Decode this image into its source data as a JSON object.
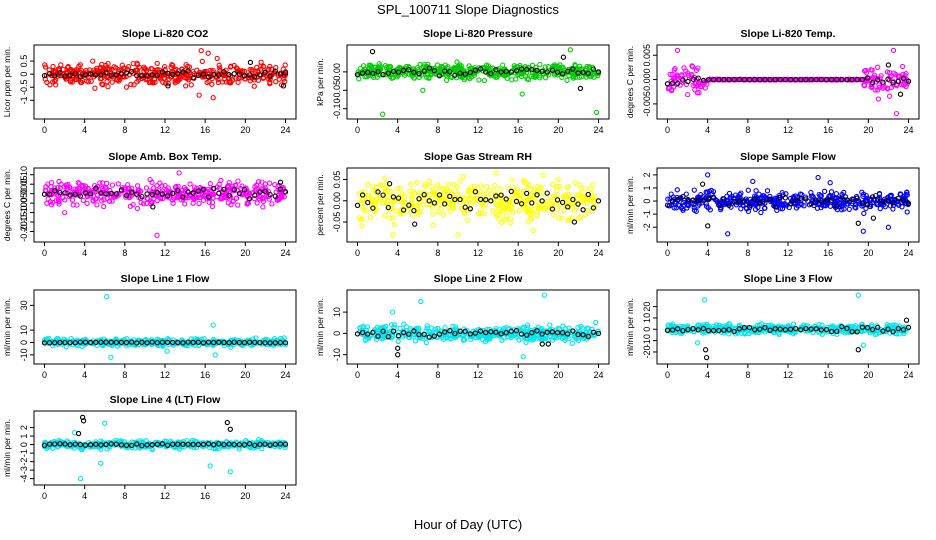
{
  "title": "SPL_100711  Slope Diagnostics",
  "xlabel": "Hour of Day (UTC)",
  "chart_data": [
    {
      "type": "scatter",
      "title": "Slope Li-820 CO2",
      "ylabel": "Licor ppm per min.",
      "color": "#ff0000",
      "xlim": [
        0,
        24
      ],
      "xticks": [
        0,
        4,
        8,
        12,
        16,
        20,
        24
      ],
      "ylim": [
        -1.6,
        1.0
      ],
      "yticks": [
        -1,
        -0.5,
        0,
        0.5
      ],
      "ytick_labels": [
        "-1",
        "-0.5",
        "0",
        "0.5"
      ],
      "amp": 0.35,
      "spikes": [
        [
          15.6,
          0.9
        ],
        [
          16.3,
          0.8
        ],
        [
          15.4,
          -0.8
        ],
        [
          16.8,
          -0.9
        ],
        [
          17.2,
          0.6
        ],
        [
          4.8,
          0.5
        ]
      ],
      "black_amp": 0.15,
      "black_spikes": [
        [
          12.3,
          -0.45
        ],
        [
          23.8,
          -0.45
        ],
        [
          20.5,
          0.45
        ]
      ]
    },
    {
      "type": "scatter",
      "title": "Slope Li-820 Pressure",
      "ylabel": "kPa per min.",
      "color": "#00cc00",
      "xlim": [
        0,
        24
      ],
      "xticks": [
        0,
        4,
        8,
        12,
        16,
        20,
        24
      ],
      "ylim": [
        -0.12,
        0.065
      ],
      "yticks": [
        -0.1,
        -0.05,
        0
      ],
      "ytick_labels": [
        "-0.10",
        "-0.05",
        "0.00"
      ],
      "amp": 0.018,
      "spikes": [
        [
          2.5,
          -0.115
        ],
        [
          23.8,
          -0.11
        ],
        [
          16.4,
          -0.06
        ],
        [
          21.2,
          0.06
        ],
        [
          6.5,
          -0.05
        ]
      ],
      "black_amp": 0.012,
      "black_spikes": [
        [
          1.5,
          0.055
        ],
        [
          22.2,
          -0.045
        ],
        [
          20.5,
          0.04
        ]
      ]
    },
    {
      "type": "scatter",
      "title": "Slope Li-820 Temp.",
      "ylabel": "degrees C per min.",
      "color": "#ff00ff",
      "xlim": [
        0,
        24
      ],
      "xticks": [
        0,
        4,
        8,
        12,
        16,
        20,
        24
      ],
      "ylim": [
        -0.0075,
        0.0065
      ],
      "yticks": [
        -0.005,
        0,
        0.005
      ],
      "ytick_labels": [
        "-0.005",
        "0.000",
        "0.005"
      ],
      "amp": 0.0025,
      "flat": [
        4,
        19.5
      ],
      "spikes": [
        [
          1.0,
          0.006
        ],
        [
          22.5,
          0.006
        ],
        [
          22.8,
          -0.007
        ],
        [
          21.0,
          -0.004
        ]
      ],
      "black_amp": 0.001,
      "black_spikes": [
        [
          23.2,
          -0.003
        ],
        [
          22.0,
          0.003
        ]
      ]
    },
    {
      "type": "scatter",
      "title": "Slope Amb. Box Temp.",
      "ylabel": "degrees C per min.",
      "color": "#ff00ff",
      "xlim": [
        0,
        24
      ],
      "xticks": [
        0,
        4,
        8,
        12,
        16,
        20,
        24
      ],
      "ylim": [
        -0.24,
        0.12
      ],
      "yticks": [
        -0.2,
        -0.15,
        -0.1,
        -0.05,
        0,
        0.05,
        0.1
      ],
      "ytick_labels": [
        "-0.20",
        "-0.15",
        "-0.10",
        "-0.05",
        "0.00",
        "0.05",
        "0.10"
      ],
      "amp": 0.05,
      "spikes": [
        [
          11.2,
          -0.22
        ],
        [
          13.4,
          0.11
        ],
        [
          2.0,
          -0.1
        ]
      ],
      "black_amp": 0.03,
      "black_spikes": [
        [
          10.8,
          -0.07
        ],
        [
          23.5,
          0.06
        ]
      ]
    },
    {
      "type": "scatter",
      "title": "Slope Gas Stream RH",
      "ylabel": "percent per min.",
      "color": "#ffff00",
      "xlim": [
        0,
        24
      ],
      "xticks": [
        0,
        4,
        8,
        12,
        16,
        20,
        24
      ],
      "ylim": [
        -0.09,
        0.07
      ],
      "yticks": [
        -0.05,
        0,
        0.05
      ],
      "ytick_labels": [
        "-0.05",
        "0.00",
        "0.05"
      ],
      "amp": 0.04,
      "spikes": [
        [
          3.5,
          -0.08
        ],
        [
          10.0,
          -0.08
        ],
        [
          17.5,
          -0.07
        ],
        [
          18.5,
          0.06
        ]
      ],
      "black_amp": 0.03,
      "black_spikes": [
        [
          5.7,
          -0.055
        ],
        [
          21.6,
          -0.05
        ],
        [
          3.2,
          0.04
        ]
      ]
    },
    {
      "type": "scatter",
      "title": "Slope Sample Flow",
      "ylabel": "ml/min per min.",
      "color": "#0000ff",
      "xlim": [
        0,
        24
      ],
      "xticks": [
        0,
        4,
        8,
        12,
        16,
        20,
        24
      ],
      "ylim": [
        -2.9,
        2.3
      ],
      "yticks": [
        -2,
        -1,
        0,
        1,
        2
      ],
      "ytick_labels": [
        "-2",
        "-1",
        "0",
        "1",
        "2"
      ],
      "amp": 0.6,
      "spikes": [
        [
          4.0,
          2.0
        ],
        [
          6.0,
          -2.5
        ],
        [
          16.2,
          1.4
        ],
        [
          19.5,
          -2.3
        ],
        [
          22.0,
          -2.0
        ],
        [
          15.0,
          1.8
        ],
        [
          8.5,
          1.5
        ]
      ],
      "black_amp": 0.5,
      "black_spikes": [
        [
          4.0,
          -1.9
        ],
        [
          19.0,
          -1.7
        ],
        [
          20.5,
          -1.3
        ],
        [
          3.5,
          1.3
        ]
      ]
    },
    {
      "type": "scatter",
      "title": "Slope Line 1 Flow",
      "ylabel": "ml/min per min.",
      "color": "#00e5ee",
      "xlim": [
        0,
        24
      ],
      "xticks": [
        0,
        4,
        8,
        12,
        16,
        20,
        24
      ],
      "ylim": [
        -15,
        40
      ],
      "yticks": [
        -10,
        0,
        10,
        30
      ],
      "ytick_labels": [
        "-10",
        "0",
        "10",
        "30"
      ],
      "amp": 2.5,
      "spikes": [
        [
          6.2,
          37
        ],
        [
          6.6,
          -12
        ],
        [
          16.8,
          14
        ],
        [
          17.0,
          -10
        ],
        [
          12.2,
          -7
        ]
      ],
      "black_amp": 0.4,
      "black_spikes": []
    },
    {
      "type": "scatter",
      "title": "Slope Line 2 Flow",
      "ylabel": "ml/min per min.",
      "color": "#00e5ee",
      "xlim": [
        0,
        24
      ],
      "xticks": [
        0,
        4,
        8,
        12,
        16,
        20,
        24
      ],
      "ylim": [
        -13,
        19
      ],
      "yticks": [
        -10,
        0,
        10
      ],
      "ytick_labels": [
        "-10",
        "0",
        "10"
      ],
      "amp": 3,
      "spikes": [
        [
          6.3,
          15
        ],
        [
          18.6,
          18
        ],
        [
          3.5,
          10
        ],
        [
          16.5,
          -11
        ]
      ],
      "black_amp": 2,
      "black_spikes": [
        [
          4.0,
          -10
        ],
        [
          4.0,
          -7
        ],
        [
          19.0,
          -5
        ],
        [
          18.4,
          -5
        ]
      ]
    },
    {
      "type": "scatter",
      "title": "Slope Line 3 Flow",
      "ylabel": "ml/min per min.",
      "color": "#00e5ee",
      "xlim": [
        0,
        24
      ],
      "xticks": [
        0,
        4,
        8,
        12,
        16,
        20,
        24
      ],
      "ylim": [
        -28,
        32
      ],
      "yticks": [
        -20,
        -10,
        0,
        10,
        20
      ],
      "ytick_labels": [
        "-20",
        "-10",
        "0",
        "10",
        "20"
      ],
      "amp": 3.5,
      "spikes": [
        [
          3.7,
          26
        ],
        [
          19.0,
          30
        ],
        [
          3.0,
          -12
        ],
        [
          19.5,
          -14
        ]
      ],
      "black_amp": 2.5,
      "black_spikes": [
        [
          3.9,
          -25
        ],
        [
          3.8,
          -18
        ],
        [
          19.0,
          -18
        ],
        [
          23.8,
          8
        ]
      ]
    },
    {
      "type": "scatter",
      "title": "Slope Line 4 (LT) Flow",
      "ylabel": "ml/min per min.",
      "color": "#00e5ee",
      "xlim": [
        0,
        24
      ],
      "xticks": [
        0,
        4,
        8,
        12,
        16,
        20,
        24
      ],
      "ylim": [
        -4.4,
        3.6
      ],
      "yticks": [
        -4,
        -3,
        -2,
        -1,
        0,
        1,
        2
      ],
      "ytick_labels": [
        "-4",
        "-3",
        "-2",
        "-1",
        "0",
        "1",
        "2"
      ],
      "amp": 0.4,
      "spikes": [
        [
          3.6,
          -4.0
        ],
        [
          5.6,
          -2.2
        ],
        [
          6.0,
          2.5
        ],
        [
          16.5,
          -2.5
        ],
        [
          18.5,
          -3.2
        ],
        [
          3.0,
          1.4
        ]
      ],
      "black_amp": 0.15,
      "black_spikes": [
        [
          3.8,
          3.2
        ],
        [
          3.9,
          2.8
        ],
        [
          3.4,
          1.3
        ],
        [
          18.2,
          2.6
        ],
        [
          18.5,
          1.8
        ]
      ]
    }
  ]
}
